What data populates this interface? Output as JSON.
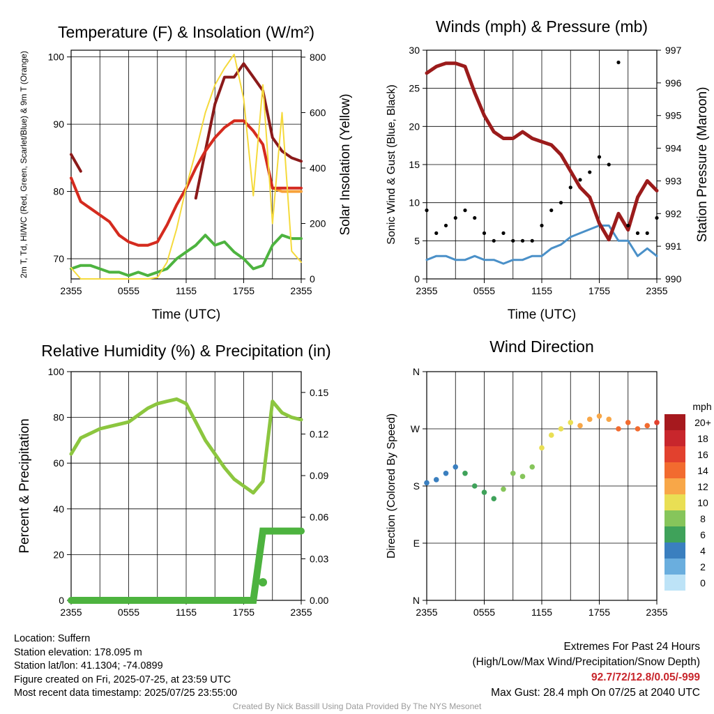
{
  "chart_data": [
    {
      "type": "line",
      "title": "Temperature (F) & Insolation (W/m²)",
      "xlabel": "Time (UTC)",
      "ylabel": "2m T, Td, HI/WC (Red, Green, Scarlet/Blue) & 9m T (Orange)",
      "ylabel_right": "Solar Insolation (Yellow)",
      "x_ticks": [
        "2355",
        "0555",
        "1155",
        "1755",
        "2355"
      ],
      "ylim": [
        67,
        101
      ],
      "y_ticks": [
        70,
        80,
        90,
        100
      ],
      "ylim_right": [
        0,
        825
      ],
      "y_ticks_right": [
        0,
        200,
        400,
        600,
        800
      ],
      "grid": true,
      "x_hours": [
        0,
        1,
        2,
        3,
        4,
        5,
        6,
        7,
        8,
        9,
        10,
        11,
        12,
        13,
        14,
        15,
        16,
        17,
        18,
        19,
        20,
        21,
        22,
        23,
        24
      ],
      "series": [
        {
          "color": "#8b1a1a",
          "values": [
            85.5,
            83,
            null,
            null,
            null,
            null,
            null,
            null,
            null,
            null,
            null,
            null,
            null,
            79,
            86,
            93,
            97,
            97,
            99,
            97,
            95,
            88,
            86,
            85,
            84.5
          ]
        },
        {
          "color": "#f7a13a",
          "values": [
            82,
            78.5,
            77.5,
            76.5,
            75.5,
            73.5,
            72.5,
            72,
            72,
            72.5,
            75,
            78,
            80.5,
            83.5,
            86,
            88,
            89.5,
            90.5,
            90.5,
            89,
            87,
            80.5,
            80,
            80,
            80
          ]
        },
        {
          "color": "#d42a20",
          "values": [
            82,
            78.5,
            77.5,
            76.5,
            75.5,
            73.5,
            72.5,
            72,
            72,
            72.5,
            75,
            78,
            80.5,
            83.5,
            86,
            88,
            89.5,
            90.5,
            90.5,
            89,
            87,
            80.5,
            80.5,
            80.5,
            80.5
          ]
        },
        {
          "color": "#4db33f",
          "values": [
            68.5,
            69,
            69,
            68.5,
            68,
            68,
            67.5,
            68,
            67.5,
            68,
            68.5,
            70,
            71,
            72,
            73.5,
            72,
            72.5,
            71,
            70,
            68.5,
            69,
            72,
            73.5,
            73,
            73
          ]
        },
        {
          "color": "#f5da3c",
          "axis": "right",
          "values": [
            40,
            0,
            0,
            0,
            0,
            0,
            0,
            0,
            0,
            5,
            60,
            180,
            330,
            460,
            600,
            700,
            760,
            810,
            650,
            300,
            700,
            200,
            600,
            100,
            60
          ]
        }
      ]
    },
    {
      "type": "scatter",
      "title": "Winds (mph) & Pressure (mb)",
      "xlabel": "Time (UTC)",
      "ylabel": "Sonic Wind & Gust (Blue, Black)",
      "ylabel_right": "Station Pressure (Maroon)",
      "x_ticks": [
        "2355",
        "0555",
        "1155",
        "1755",
        "2355"
      ],
      "ylim": [
        0,
        30
      ],
      "y_ticks": [
        0,
        5,
        10,
        15,
        20,
        25,
        30
      ],
      "ylim_right": [
        990,
        997
      ],
      "y_ticks_right": [
        990,
        991,
        992,
        993,
        994,
        995,
        996,
        997
      ],
      "grid": true,
      "x_hours": [
        0,
        1,
        2,
        3,
        4,
        5,
        6,
        7,
        8,
        9,
        10,
        11,
        12,
        13,
        14,
        15,
        16,
        17,
        18,
        19,
        20,
        21,
        22,
        23,
        24
      ],
      "series": [
        {
          "color": "#000000",
          "marker": "dot",
          "values": [
            9,
            6,
            7,
            8,
            9,
            8,
            6,
            5,
            6,
            5,
            5,
            5,
            7,
            9,
            10,
            12,
            13,
            14,
            16,
            15,
            28.4,
            7,
            6,
            6,
            8
          ]
        },
        {
          "color": "#4a90c8",
          "values": [
            2.5,
            3,
            3,
            2.5,
            2.5,
            3,
            2.5,
            2.5,
            2,
            2.5,
            2.5,
            3,
            3,
            4,
            4.5,
            5.5,
            6,
            6.5,
            7,
            7,
            5,
            5,
            3,
            4,
            3
          ]
        },
        {
          "color": "#9b1b1b",
          "axis": "right",
          "values": [
            996.3,
            996.5,
            996.6,
            996.6,
            996.5,
            995.7,
            995.0,
            994.5,
            994.3,
            994.3,
            994.5,
            994.3,
            994.2,
            994.1,
            993.8,
            993.3,
            992.8,
            992.5,
            991.7,
            991.2,
            992.0,
            991.5,
            992.5,
            993.0,
            992.7
          ]
        }
      ]
    },
    {
      "type": "line",
      "title": "Relative Humidity (%) & Precipitation (in)",
      "xlabel": "",
      "ylabel": "Percent & Precipitation",
      "x_ticks": [
        "2355",
        "0555",
        "1155",
        "1755",
        "2355"
      ],
      "ylim": [
        0,
        100
      ],
      "y_ticks": [
        0,
        20,
        40,
        60,
        80,
        100
      ],
      "ylim_right": [
        0,
        0.165
      ],
      "y_ticks_right": [
        "0.00",
        "0.03",
        "0.06",
        "0.09",
        "0.12",
        "0.15"
      ],
      "grid": true,
      "x_hours": [
        0,
        1,
        2,
        3,
        4,
        5,
        6,
        7,
        8,
        9,
        10,
        11,
        12,
        13,
        14,
        15,
        16,
        17,
        18,
        19,
        20,
        21,
        22,
        23,
        24
      ],
      "series": [
        {
          "color": "#8cc63f",
          "values": [
            64,
            71,
            73,
            75,
            76,
            77,
            78,
            81,
            84,
            86,
            87,
            88,
            86,
            78,
            70,
            64,
            58,
            53,
            50,
            47,
            52,
            87,
            82,
            80,
            79
          ]
        },
        {
          "color": "#4db33f",
          "axis": "right",
          "marker": "dot",
          "values": [
            0,
            0,
            0,
            0,
            0,
            0,
            0,
            0,
            0,
            0,
            0,
            0,
            0,
            0,
            0,
            0,
            0,
            0,
            0,
            0,
            0.05,
            0.05,
            0.05,
            0.05,
            0.05
          ]
        }
      ],
      "points": [
        {
          "x": 20,
          "y": 0.013,
          "color": "#4db33f"
        }
      ]
    },
    {
      "type": "scatter",
      "title": "Wind Direction",
      "ylabel": "Direction (Colored By Speed)",
      "x_ticks": [
        "2355",
        "0555",
        "1155",
        "1755",
        "2355"
      ],
      "y_ticks": [
        "N",
        "E",
        "S",
        "W",
        "N"
      ],
      "ylim": [
        0,
        360
      ],
      "grid": true,
      "colorbar": {
        "unit": "mph",
        "labels": [
          "20+",
          "18",
          "16",
          "14",
          "12",
          "10",
          "8",
          "6",
          "4",
          "2",
          "0"
        ],
        "colors": [
          "#a6191e",
          "#c8262c",
          "#e2412e",
          "#f26b2f",
          "#f8a748",
          "#e9df54",
          "#86c55b",
          "#3fa25a",
          "#3a7fbf",
          "#6aaede",
          "#bde3f7"
        ]
      },
      "x_hours": [
        0,
        1,
        2,
        3,
        4,
        5,
        6,
        7,
        8,
        9,
        10,
        11,
        12,
        13,
        14,
        15,
        16,
        17,
        18,
        19,
        20,
        21,
        22,
        23,
        24
      ],
      "directions": [
        185,
        190,
        200,
        210,
        200,
        180,
        170,
        160,
        175,
        200,
        195,
        210,
        240,
        260,
        270,
        280,
        275,
        285,
        290,
        285,
        270,
        280,
        270,
        275,
        280
      ]
    }
  ],
  "info": {
    "location": "Location: Suffern",
    "elevation": "Station elevation: 178.095 m",
    "latlon": "Station lat/lon: 41.1304; -74.0899",
    "created": "Figure created on Fri, 2025-07-25, at 23:59 UTC",
    "recent": "Most recent data timestamp: 2025/07/25 23:55:00"
  },
  "extremes": {
    "title": "Extremes For Past 24 Hours",
    "subtitle": "(High/Low/Max Wind/Precipitation/Snow Depth)",
    "values": "92.7/72/12.8/0.05/-999",
    "gust": "Max Gust: 28.4 mph On 07/25 at 2040 UTC"
  },
  "credit": "Created By Nick Bassill Using Data Provided By The NYS Mesonet"
}
